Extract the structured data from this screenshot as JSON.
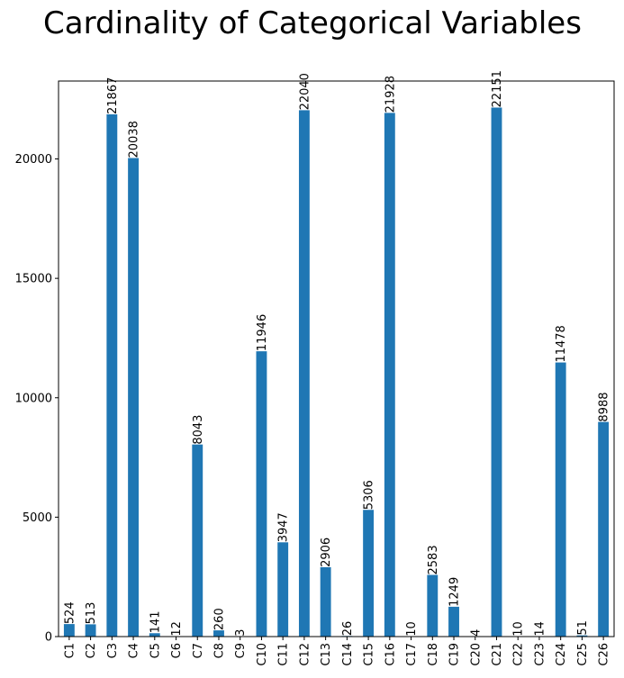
{
  "chart_data": {
    "type": "bar",
    "title": "Cardinality of Categorical Variables",
    "xlabel": "",
    "ylabel": "",
    "categories": [
      "C1",
      "C2",
      "C3",
      "C4",
      "C5",
      "C6",
      "C7",
      "C8",
      "C9",
      "C10",
      "C11",
      "C12",
      "C13",
      "C14",
      "C15",
      "C16",
      "C17",
      "C18",
      "C19",
      "C20",
      "C21",
      "C22",
      "C23",
      "C24",
      "C25",
      "C26"
    ],
    "values": [
      524,
      513,
      21867,
      20038,
      141,
      12,
      8043,
      260,
      3,
      11946,
      3947,
      22040,
      2906,
      26,
      5306,
      21928,
      10,
      2583,
      1249,
      4,
      22151,
      10,
      14,
      11478,
      51,
      8988
    ],
    "ylim": [
      0,
      23262
    ],
    "yticks": [
      0,
      5000,
      10000,
      15000,
      20000
    ],
    "grid": false,
    "legend": false,
    "bar_color": "#1f77b4"
  }
}
